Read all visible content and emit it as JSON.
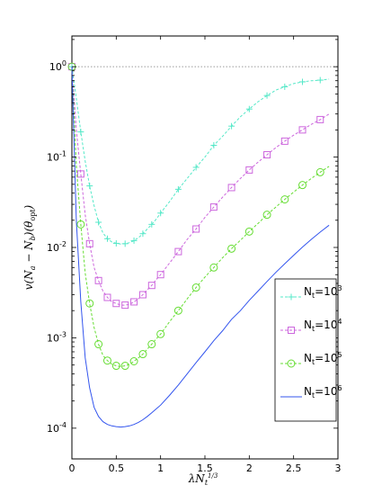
{
  "chart_data": {
    "type": "line",
    "title": "",
    "xlabel": "λN_t^{1/3}",
    "ylabel": "v(N_a − N_b)(θ_opt)",
    "xlim": [
      0,
      3
    ],
    "ylim": [
      0.0001,
      1
    ],
    "y_scale": "log",
    "grid": false,
    "legend_position": "bottom-right",
    "x_ticks": [
      "0",
      "0.5",
      "1",
      "1.5",
      "2",
      "2.5",
      "3"
    ],
    "y_ticks": [
      "10^-4",
      "10^-3",
      "10^-2",
      "10^-1",
      "10^0"
    ],
    "reference_line": {
      "y": 1,
      "style": "dotted",
      "color": "#9a9a9a"
    },
    "x": [
      0,
      0.05,
      0.1,
      0.15,
      0.2,
      0.25,
      0.3,
      0.35,
      0.4,
      0.45,
      0.5,
      0.55,
      0.6,
      0.65,
      0.7,
      0.75,
      0.8,
      0.85,
      0.9,
      0.95,
      1.0,
      1.1,
      1.2,
      1.3,
      1.4,
      1.5,
      1.6,
      1.7,
      1.8,
      1.9,
      2.0,
      2.1,
      2.2,
      2.3,
      2.4,
      2.5,
      2.6,
      2.7,
      2.8,
      2.9
    ],
    "series": [
      {
        "name": "N_t=10^3",
        "color": "#55e8c8",
        "line_style": "dashed",
        "marker": "plus",
        "values": [
          1.0,
          0.45,
          0.19,
          0.09,
          0.048,
          0.029,
          0.019,
          0.0145,
          0.0125,
          0.0115,
          0.0111,
          0.0109,
          0.011,
          0.0113,
          0.0119,
          0.0128,
          0.0142,
          0.016,
          0.018,
          0.0205,
          0.024,
          0.032,
          0.044,
          0.058,
          0.077,
          0.1,
          0.135,
          0.17,
          0.22,
          0.28,
          0.34,
          0.41,
          0.48,
          0.55,
          0.6,
          0.65,
          0.68,
          0.7,
          0.71,
          0.73
        ]
      },
      {
        "name": "N_t=10^4",
        "color": "#cc66dd",
        "line_style": "dashed",
        "marker": "square",
        "values": [
          1.0,
          0.2,
          0.065,
          0.023,
          0.011,
          0.006,
          0.0043,
          0.0033,
          0.0028,
          0.0025,
          0.0024,
          0.0023,
          0.0023,
          0.00235,
          0.0025,
          0.0027,
          0.003,
          0.0034,
          0.0038,
          0.0044,
          0.005,
          0.0067,
          0.009,
          0.0123,
          0.016,
          0.0215,
          0.028,
          0.036,
          0.046,
          0.058,
          0.072,
          0.088,
          0.106,
          0.127,
          0.15,
          0.175,
          0.2,
          0.23,
          0.26,
          0.3
        ]
      },
      {
        "name": "N_t=10^5",
        "color": "#66dd33",
        "line_style": "dashed",
        "marker": "circle",
        "values": [
          1.0,
          0.08,
          0.018,
          0.0052,
          0.0024,
          0.0013,
          0.00085,
          0.00064,
          0.00056,
          0.00051,
          0.00049,
          0.00048,
          0.00049,
          0.00051,
          0.00055,
          0.0006,
          0.00066,
          0.00075,
          0.00085,
          0.00097,
          0.0011,
          0.0015,
          0.002,
          0.0027,
          0.0036,
          0.0047,
          0.006,
          0.0077,
          0.0097,
          0.012,
          0.015,
          0.0185,
          0.023,
          0.028,
          0.034,
          0.041,
          0.049,
          0.058,
          0.068,
          0.079
        ]
      },
      {
        "name": "N_t=10^6",
        "color": "#3355ee",
        "line_style": "solid",
        "marker": "none",
        "values": [
          1.0,
          0.02,
          0.0025,
          0.0006,
          0.00028,
          0.00017,
          0.000135,
          0.000118,
          0.00011,
          0.000106,
          0.000104,
          0.000103,
          0.000104,
          0.000106,
          0.00011,
          0.000116,
          0.000124,
          0.000135,
          0.000148,
          0.000163,
          0.00018,
          0.00023,
          0.0003,
          0.0004,
          0.00053,
          0.0007,
          0.00093,
          0.0012,
          0.0016,
          0.002,
          0.0026,
          0.0033,
          0.0042,
          0.0053,
          0.0066,
          0.0082,
          0.0101,
          0.0123,
          0.0148,
          0.0176
        ]
      }
    ],
    "legend": [
      {
        "label_base": "N",
        "label_sub": "t",
        "label_eq": "=10",
        "label_exp": "3"
      },
      {
        "label_base": "N",
        "label_sub": "t",
        "label_eq": "=10",
        "label_exp": "4"
      },
      {
        "label_base": "N",
        "label_sub": "t",
        "label_eq": "=10",
        "label_exp": "5"
      },
      {
        "label_base": "N",
        "label_sub": "t",
        "label_eq": "=10",
        "label_exp": "6"
      }
    ]
  }
}
